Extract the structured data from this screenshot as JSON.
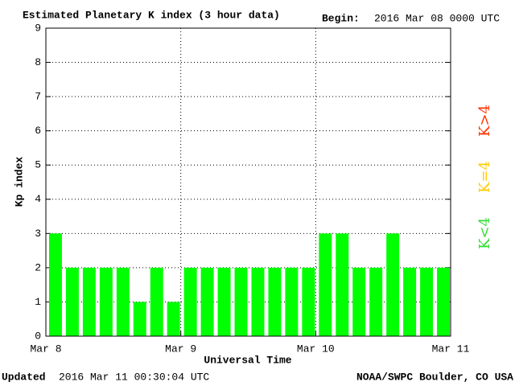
{
  "chart_data": {
    "type": "bar",
    "title": "Estimated Planetary K index (3 hour data)",
    "begin_label": "Begin:",
    "begin_value": "2016 Mar 08 0000 UTC",
    "ylabel": "Kp index",
    "xlabel": "Universal Time",
    "updated_label": "Updated",
    "updated_value": "2016 Mar 11 00:30:04 UTC",
    "source": "NOAA/SWPC Boulder, CO USA",
    "x": [
      0,
      3,
      6,
      9,
      12,
      15,
      18,
      21,
      24,
      27,
      30,
      33,
      36,
      39,
      42,
      45,
      48,
      51,
      54,
      57,
      60,
      63,
      66,
      69
    ],
    "bar_width": 3,
    "series": [
      {
        "name": "Kp",
        "color": "#00ff00",
        "values": [
          3,
          2,
          2,
          2,
          2,
          1,
          2,
          1,
          2,
          2,
          2,
          2,
          2,
          2,
          2,
          2,
          3,
          3,
          2,
          2,
          3,
          2,
          2,
          2
        ]
      }
    ],
    "xlim": [
      0,
      72
    ],
    "xticks": [
      {
        "value": 0,
        "label": "Mar 8"
      },
      {
        "value": 24,
        "label": "Mar 9"
      },
      {
        "value": 48,
        "label": "Mar 10"
      },
      {
        "value": 72,
        "label": "Mar 11"
      }
    ],
    "ylim": [
      0,
      9
    ],
    "yticks": [
      0,
      1,
      2,
      3,
      4,
      5,
      6,
      7,
      8,
      9
    ],
    "grid": true,
    "legend": [
      {
        "label": "K<4",
        "color": "#33dd33"
      },
      {
        "label": "K=4",
        "color": "#ffcc00"
      },
      {
        "label": "K>4",
        "color": "#ff3300"
      }
    ]
  }
}
